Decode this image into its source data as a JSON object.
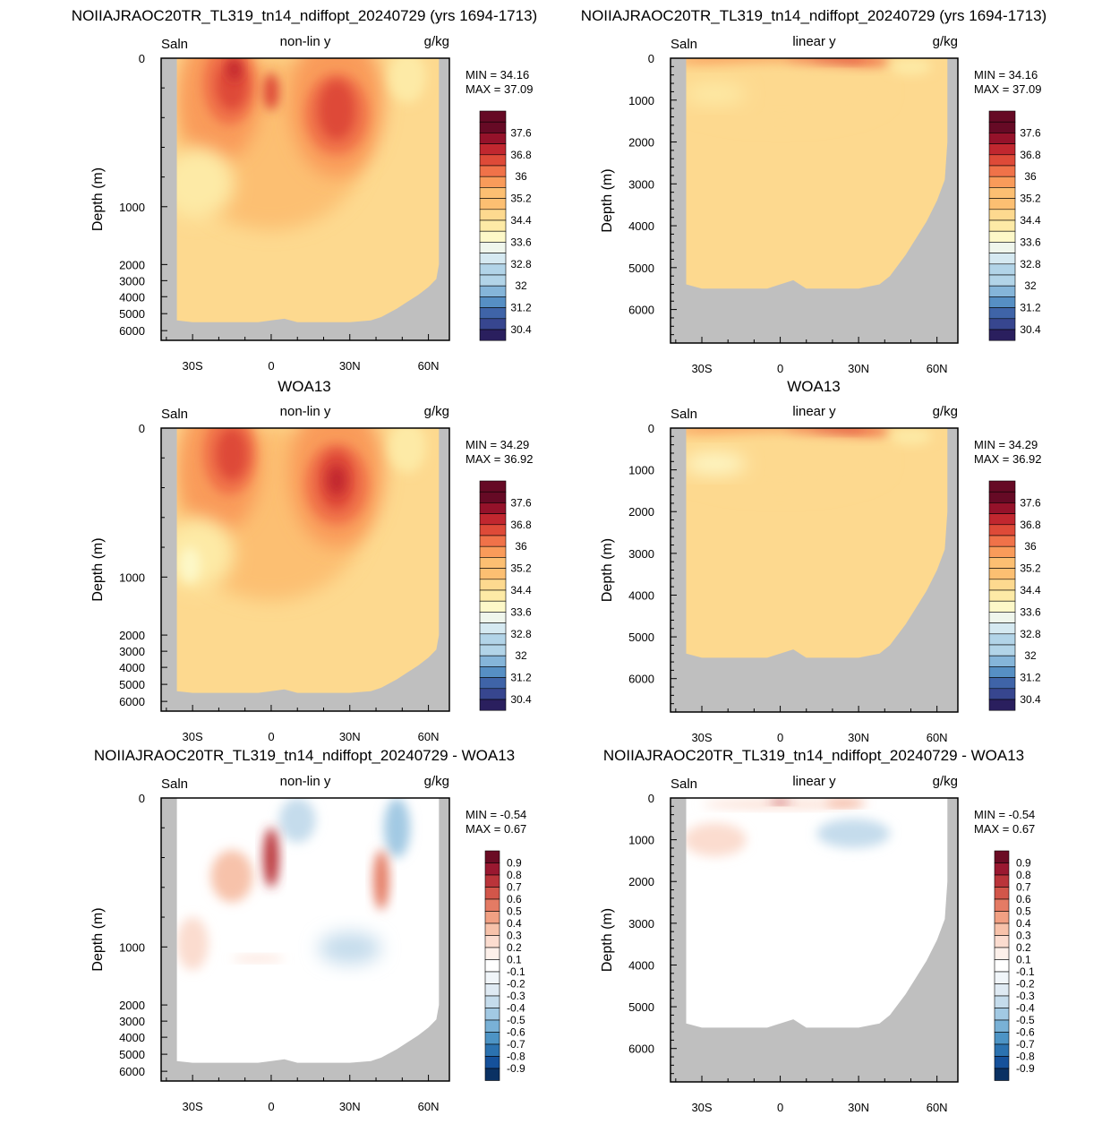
{
  "figure": {
    "row_titles": [
      "NOIIAJRAOC20TR_TL319_tn14_ndiffopt_20240729 (yrs 1694-1713)",
      "NOIIAJRAOC20TR_TL319_tn14_ndiffopt_20240729 (yrs 1694-1713)",
      "WOA13",
      "WOA13",
      "NOIIAJRAOC20TR_TL319_tn14_ndiffopt_20240729 - WOA13",
      "NOIIAJRAOC20TR_TL319_tn14_ndiffopt_20240729 - WOA13"
    ]
  },
  "colors": {
    "land": "#bfbfbf",
    "saln_levels": [
      "#2a1f5e",
      "#37468f",
      "#3f64a8",
      "#568fc4",
      "#85b5d9",
      "#b2d4e8",
      "#d5e9f1",
      "#eff6ec",
      "#fdf8c8",
      "#fdeaa6",
      "#fdd98f",
      "#fcbf72",
      "#f99b5a",
      "#f07249",
      "#de4a38",
      "#c1272f",
      "#95122a",
      "#660a25"
    ],
    "diff_levels": [
      "#0a3163",
      "#15519b",
      "#2b72b0",
      "#4d94c5",
      "#79b1d6",
      "#a2c9e3",
      "#c5dcec",
      "#dfeaf3",
      "#f0f5f9",
      "#ffffff",
      "#fdf0ea",
      "#fbdccf",
      "#f7c2aa",
      "#f1a083",
      "#e47b64",
      "#d2564a",
      "#ba343a",
      "#9a1830",
      "#6b0c24"
    ]
  },
  "chart_data": [
    {
      "type": "heatmap",
      "panel": "model-nonlinear",
      "title": "NOIIAJRAOC20TR_TL319_tn14_ndiffopt_20240729 (yrs 1694-1713)",
      "left_label": "Saln",
      "center_label": "non-lin y",
      "right_label": "g/kg",
      "ylabel": "Depth (m)",
      "y_axis": "nonlinear",
      "yticks": [
        "0",
        "1000",
        "2000",
        "3000",
        "4000",
        "5000",
        "6000"
      ],
      "xticks": [
        "30S",
        "0",
        "30N",
        "60N"
      ],
      "xlim": [
        -42,
        68
      ],
      "min_label": "MIN =",
      "min_value": "34.16",
      "max_label": "MAX =",
      "max_value": "37.09",
      "colorbar_labels": [
        "37.6",
        "36.8",
        "36",
        "35.2",
        "34.4",
        "33.6",
        "32.8",
        "32",
        "31.2",
        "30.4"
      ],
      "features": [
        {
          "lat": -15,
          "depth": 150,
          "value": 36.8
        },
        {
          "lat": 25,
          "depth": 350,
          "value": 36.9
        },
        {
          "lat": 0,
          "depth": 200,
          "value": 36.0
        },
        {
          "lat": -28,
          "depth": 800,
          "value": 34.5
        },
        {
          "lat": 50,
          "depth": 100,
          "value": 34.4
        }
      ]
    },
    {
      "type": "heatmap",
      "panel": "model-linear",
      "title": "NOIIAJRAOC20TR_TL319_tn14_ndiffopt_20240729 (yrs 1694-1713)",
      "left_label": "Saln",
      "center_label": "linear y",
      "right_label": "g/kg",
      "ylabel": "Depth (m)",
      "y_axis": "linear",
      "yticks": [
        "0",
        "1000",
        "2000",
        "3000",
        "4000",
        "5000",
        "6000"
      ],
      "xticks": [
        "30S",
        "0",
        "30N",
        "60N"
      ],
      "xlim": [
        -42,
        68
      ],
      "ylim": [
        0,
        6800
      ],
      "min_label": "MIN =",
      "min_value": "34.16",
      "max_label": "MAX =",
      "max_value": "37.09",
      "colorbar_labels": [
        "37.6",
        "36.8",
        "36",
        "35.2",
        "34.4",
        "33.6",
        "32.8",
        "32",
        "31.2",
        "30.4"
      ]
    },
    {
      "type": "heatmap",
      "panel": "obs-nonlinear",
      "title": "WOA13",
      "left_label": "Saln",
      "center_label": "non-lin y",
      "right_label": "g/kg",
      "ylabel": "Depth (m)",
      "y_axis": "nonlinear",
      "yticks": [
        "0",
        "1000",
        "2000",
        "3000",
        "4000",
        "5000",
        "6000"
      ],
      "xticks": [
        "30S",
        "0",
        "30N",
        "60N"
      ],
      "xlim": [
        -42,
        68
      ],
      "min_label": "MIN =",
      "min_value": "34.29",
      "max_label": "MAX =",
      "max_value": "36.92",
      "colorbar_labels": [
        "37.6",
        "36.8",
        "36",
        "35.2",
        "34.4",
        "33.6",
        "32.8",
        "32",
        "31.2",
        "30.4"
      ]
    },
    {
      "type": "heatmap",
      "panel": "obs-linear",
      "title": "WOA13",
      "left_label": "Saln",
      "center_label": "linear y",
      "right_label": "g/kg",
      "ylabel": "Depth (m)",
      "y_axis": "linear",
      "yticks": [
        "0",
        "1000",
        "2000",
        "3000",
        "4000",
        "5000",
        "6000"
      ],
      "xticks": [
        "30S",
        "0",
        "30N",
        "60N"
      ],
      "xlim": [
        -42,
        68
      ],
      "ylim": [
        0,
        6800
      ],
      "min_label": "MIN =",
      "min_value": "34.29",
      "max_label": "MAX =",
      "max_value": "36.92",
      "colorbar_labels": [
        "37.6",
        "36.8",
        "36",
        "35.2",
        "34.4",
        "33.6",
        "32.8",
        "32",
        "31.2",
        "30.4"
      ]
    },
    {
      "type": "heatmap",
      "panel": "diff-nonlinear",
      "title": "NOIIAJRAOC20TR_TL319_tn14_ndiffopt_20240729 - WOA13",
      "left_label": "Saln",
      "center_label": "non-lin y",
      "right_label": "g/kg",
      "ylabel": "Depth (m)",
      "y_axis": "nonlinear",
      "yticks": [
        "0",
        "1000",
        "2000",
        "3000",
        "4000",
        "5000",
        "6000"
      ],
      "xticks": [
        "30S",
        "0",
        "30N",
        "60N"
      ],
      "xlim": [
        -42,
        68
      ],
      "min_label": "MIN =",
      "min_value": "-0.54",
      "max_label": "MAX =",
      "max_value": "0.67",
      "colorbar_labels": [
        "0.9",
        "0.8",
        "0.7",
        "0.6",
        "0.5",
        "0.4",
        "0.3",
        "0.2",
        "0.1",
        "-0.1",
        "-0.2",
        "-0.3",
        "-0.4",
        "-0.5",
        "-0.6",
        "-0.7",
        "-0.8",
        "-0.9"
      ]
    },
    {
      "type": "heatmap",
      "panel": "diff-linear",
      "title": "NOIIAJRAOC20TR_TL319_tn14_ndiffopt_20240729 - WOA13",
      "left_label": "Saln",
      "center_label": "linear y",
      "right_label": "g/kg",
      "ylabel": "Depth (m)",
      "y_axis": "linear",
      "yticks": [
        "0",
        "1000",
        "2000",
        "3000",
        "4000",
        "5000",
        "6000"
      ],
      "xticks": [
        "30S",
        "0",
        "30N",
        "60N"
      ],
      "xlim": [
        -42,
        68
      ],
      "ylim": [
        0,
        6800
      ],
      "min_label": "MIN =",
      "min_value": "-0.54",
      "max_label": "MAX =",
      "max_value": "0.67",
      "colorbar_labels": [
        "0.9",
        "0.8",
        "0.7",
        "0.6",
        "0.5",
        "0.4",
        "0.3",
        "0.2",
        "0.1",
        "-0.1",
        "-0.2",
        "-0.3",
        "-0.4",
        "-0.5",
        "-0.6",
        "-0.7",
        "-0.8",
        "-0.9"
      ]
    }
  ]
}
